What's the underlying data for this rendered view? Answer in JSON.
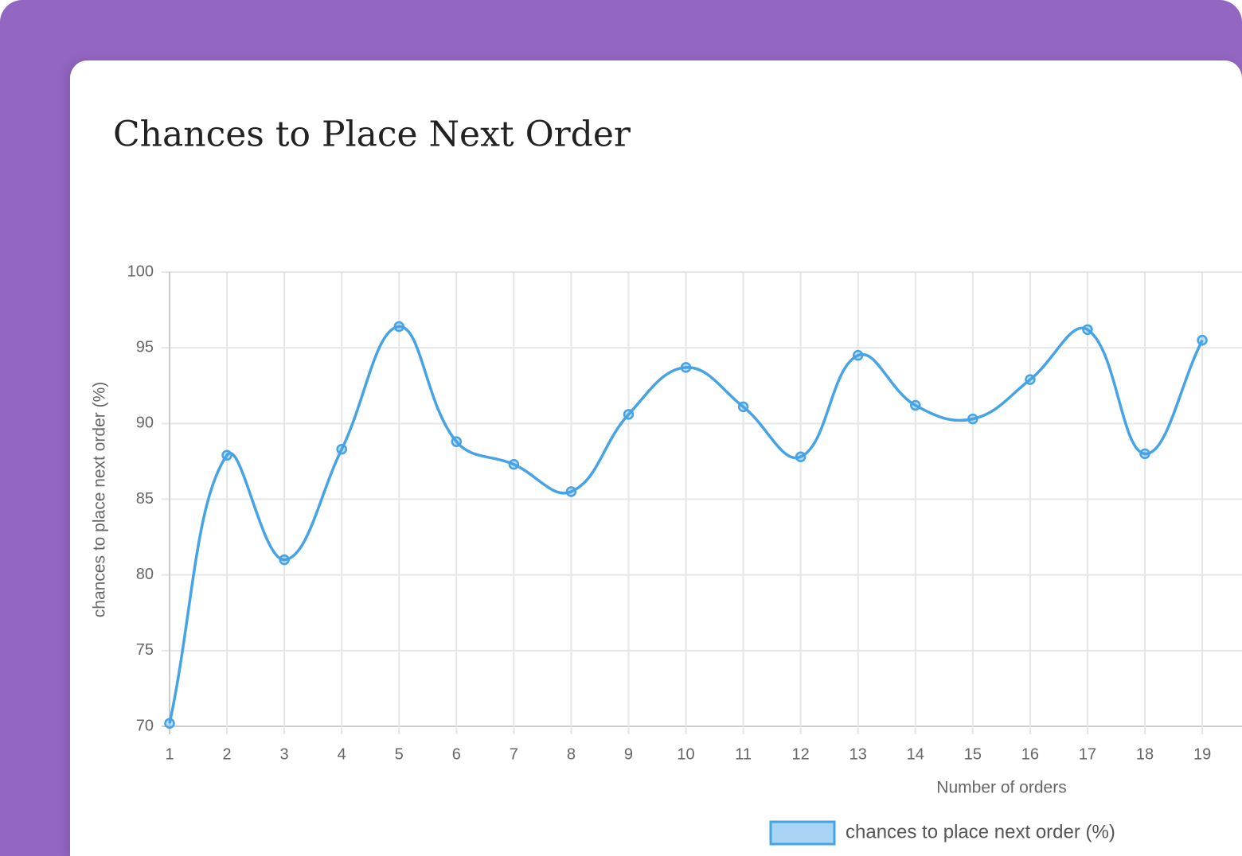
{
  "chart_data": {
    "type": "line",
    "title": "Chances to Place Next Order",
    "x_label": "Number of orders",
    "y_label": "chances to place next order (%)",
    "categories": [
      "1",
      "2",
      "3",
      "4",
      "5",
      "6",
      "7",
      "8",
      "9",
      "10",
      "11",
      "12",
      "13",
      "14",
      "15",
      "16",
      "17",
      "18",
      "19"
    ],
    "series": [
      {
        "name": "chances to place next order (%)",
        "color": "#45a3e6",
        "values": [
          70.2,
          87.9,
          81.0,
          88.3,
          96.4,
          88.8,
          87.3,
          85.5,
          90.6,
          93.7,
          91.1,
          87.8,
          94.5,
          91.2,
          90.3,
          92.9,
          96.2,
          88.0,
          95.5
        ]
      }
    ],
    "ylim": [
      70,
      100
    ],
    "yticks": [
      70,
      75,
      80,
      85,
      90,
      95,
      100
    ],
    "grid": true
  }
}
